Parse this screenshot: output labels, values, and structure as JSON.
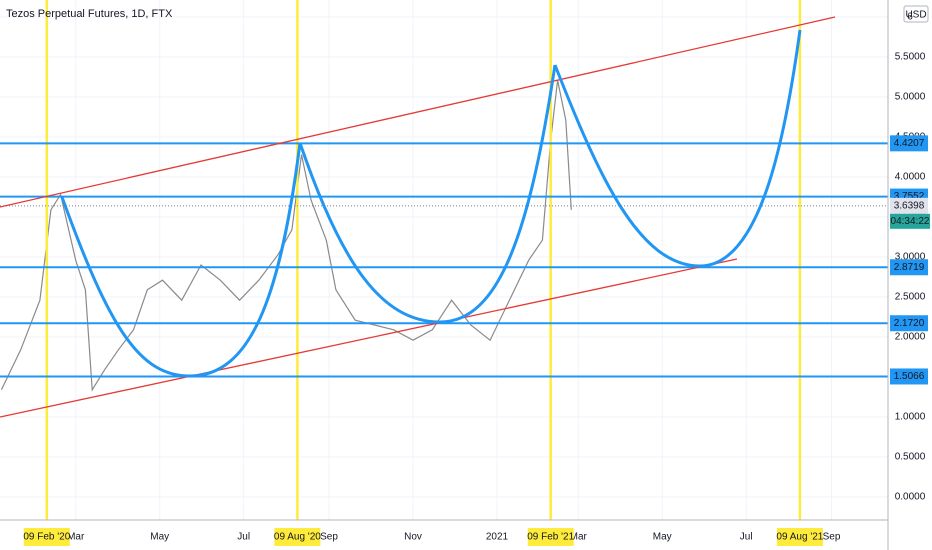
{
  "chart_data": {
    "type": "line",
    "title": "Tezos Perpetual Futures, 1D, FTX",
    "currency": "USD",
    "x": [
      "2020-01-07",
      "2020-01-21",
      "2020-02-04",
      "2020-02-12",
      "2020-02-19",
      "2020-03-01",
      "2020-03-08",
      "2020-03-13",
      "2020-03-22",
      "2020-04-01",
      "2020-04-12",
      "2020-04-22",
      "2020-05-03",
      "2020-05-17",
      "2020-05-31",
      "2020-06-14",
      "2020-06-28",
      "2020-07-12",
      "2020-07-26",
      "2020-08-05",
      "2020-08-12",
      "2020-08-19",
      "2020-08-30",
      "2020-09-06",
      "2020-09-20",
      "2020-10-04",
      "2020-10-18",
      "2020-11-01",
      "2020-11-15",
      "2020-11-29",
      "2020-12-13",
      "2020-12-27",
      "2021-01-10",
      "2021-01-24",
      "2021-02-03",
      "2021-02-09",
      "2021-02-14",
      "2021-02-20",
      "2021-02-24"
    ],
    "values": [
      1.34,
      1.84,
      2.46,
      3.59,
      3.78,
      2.96,
      2.59,
      1.34,
      1.59,
      1.84,
      2.09,
      2.59,
      2.71,
      2.46,
      2.9,
      2.71,
      2.46,
      2.71,
      3.03,
      3.34,
      4.28,
      3.71,
      3.21,
      2.59,
      2.21,
      2.15,
      2.09,
      1.96,
      2.09,
      2.46,
      2.15,
      1.96,
      2.46,
      2.96,
      3.21,
      4.46,
      5.21,
      4.71,
      3.59
    ],
    "color": "#8a8a8a",
    "xlim": [
      "2020-01-06",
      "2021-10-12"
    ],
    "xticks": [
      {
        "value": "2020-03-01",
        "label": "Mar"
      },
      {
        "value": "2020-05-01",
        "label": "May"
      },
      {
        "value": "2020-07-01",
        "label": "Jul"
      },
      {
        "value": "2020-09-01",
        "label": "Sep"
      },
      {
        "value": "2020-11-01",
        "label": "Nov"
      },
      {
        "value": "2021-01-01",
        "label": "2021"
      },
      {
        "value": "2021-03-01",
        "label": "Mar"
      },
      {
        "value": "2021-05-01",
        "label": "May"
      },
      {
        "value": "2021-07-01",
        "label": "Jul"
      },
      {
        "value": "2021-09-01",
        "label": "Sep"
      }
    ],
    "ylim": [
      -0.2875,
      6.2125
    ],
    "yticks": [
      {
        "value": 0,
        "label": "0.0000"
      },
      {
        "value": 0.5,
        "label": "0.5000"
      },
      {
        "value": 1,
        "label": "1.0000"
      },
      {
        "value": 1.5,
        "label": "1.5000"
      },
      {
        "value": 2,
        "label": "2.0000"
      },
      {
        "value": 2.5,
        "label": "2.5000"
      },
      {
        "value": 3,
        "label": "3.0000"
      },
      {
        "value": 3.5,
        "label": "3.5000"
      },
      {
        "value": 4,
        "label": "4.0000"
      },
      {
        "value": 4.5,
        "label": "4.5000"
      },
      {
        "value": 5,
        "label": "5.0000"
      },
      {
        "value": 5.5,
        "label": "5.5000"
      },
      6
    ],
    "grid": true,
    "highlight_dates": [
      {
        "value": "2020-02-09",
        "label": "09 Feb '20"
      },
      {
        "value": "2020-08-09",
        "label": "09 Aug '20"
      },
      {
        "value": "2021-02-09",
        "label": "09 Feb '21"
      },
      {
        "value": "2021-08-09",
        "label": "09 Aug '21"
      }
    ],
    "highlight_color": "#ffeb3b",
    "levels": [
      4.4207,
      3.7552,
      {
        "value": 2.8719,
        "label": "2.8719"
      },
      {
        "value": 2.172,
        "label": "2.1720"
      },
      1.5066
    ],
    "level_color": "#2196f3",
    "last_price": 3.6398,
    "countdown": "04:34:22"
  }
}
